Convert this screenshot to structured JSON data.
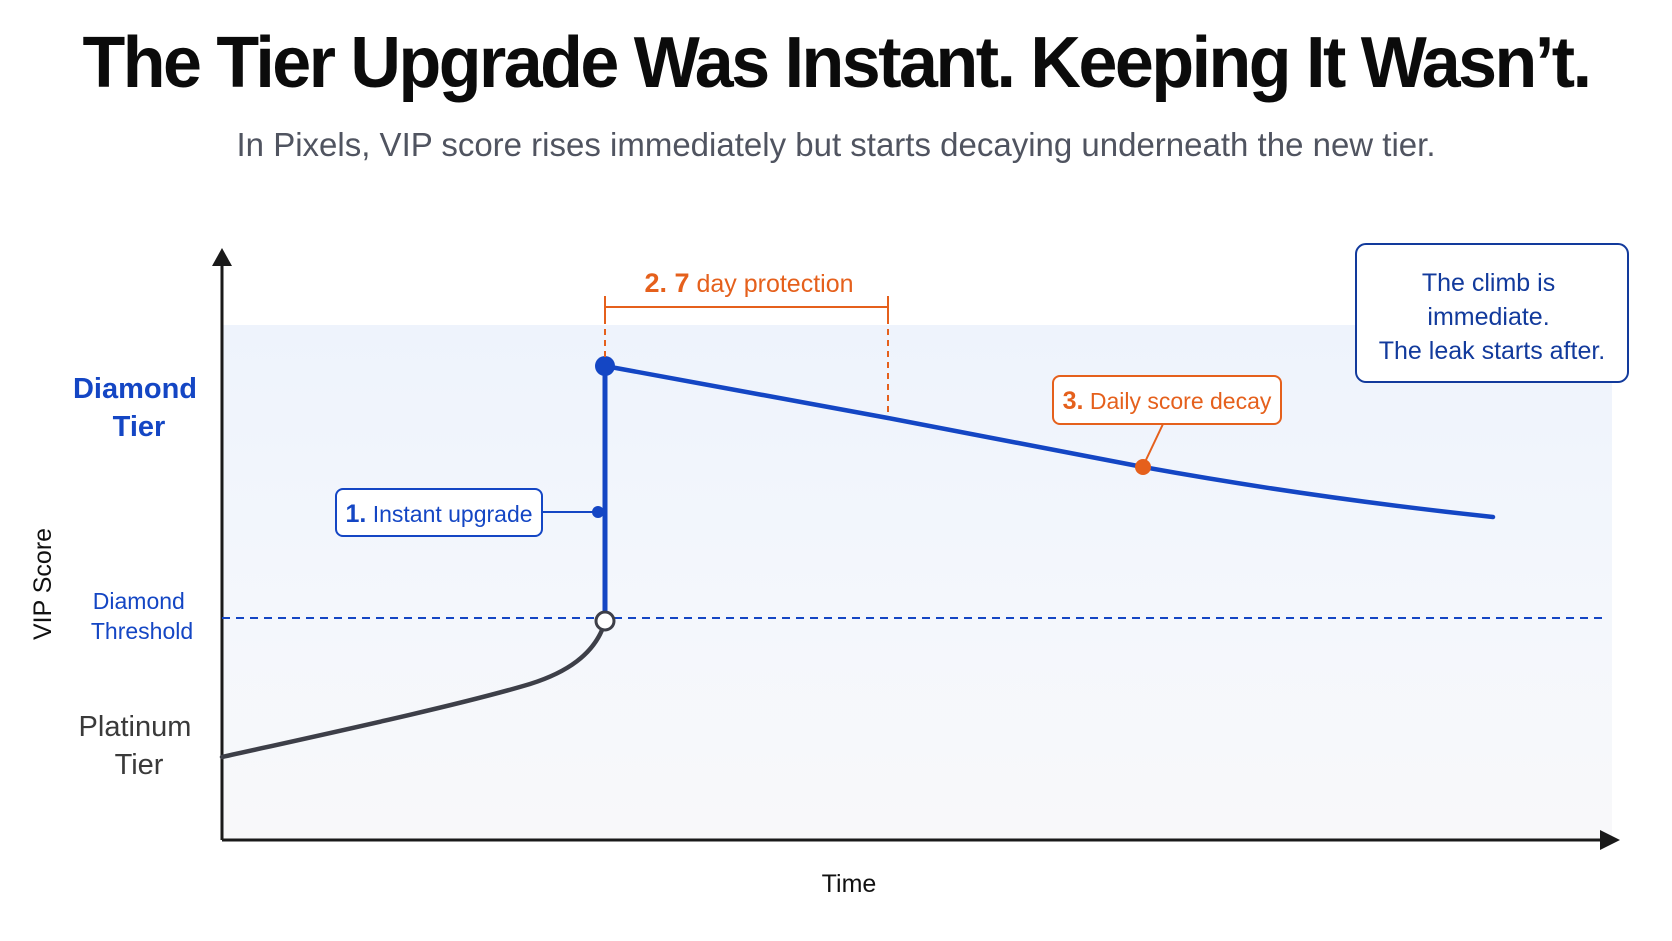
{
  "header": {
    "title": "The Tier Upgrade Was Instant. Keeping It Wasn’t.",
    "subtitle": "In Pixels, VIP score rises immediately but starts decaying underneath the new tier."
  },
  "axes": {
    "y_label": "VIP Score",
    "x_label": "Time"
  },
  "tiers": {
    "diamond": [
      "Diamond",
      "Tier"
    ],
    "threshold": [
      "Diamond",
      "Threshold"
    ],
    "platinum": [
      "Platinum",
      "Tier"
    ]
  },
  "callouts": {
    "instant_upgrade": {
      "num": "1.",
      "text": "Instant upgrade"
    },
    "protection": {
      "num": "2. 7",
      "text": "day protection"
    },
    "decay": {
      "num": "3.",
      "text": "Daily score decay"
    },
    "summary": [
      "The climb is",
      "immediate.",
      "The leak starts after."
    ]
  },
  "colors": {
    "blue": "#1446c4",
    "navy": "#123a9c",
    "orange": "#e5601c",
    "dark": "#3d3f48",
    "text": "#111111",
    "gray_text": "#3a3a3a"
  }
}
